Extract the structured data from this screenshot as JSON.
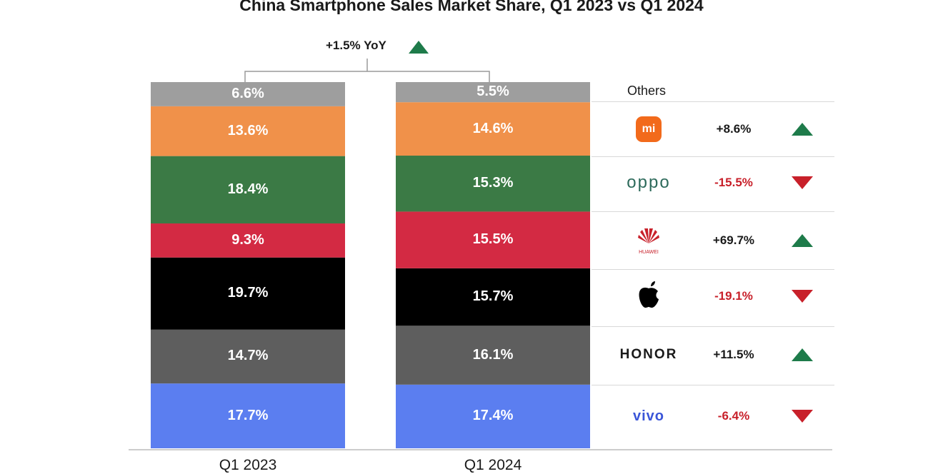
{
  "title": "China Smartphone Sales Market Share, Q1 2023 vs Q1 2024",
  "annotation": {
    "yoy_text": "+1.5% YoY",
    "direction": "up"
  },
  "colors": {
    "up": "#1e7b4a",
    "down": "#c8202a"
  },
  "chart_data": {
    "type": "bar",
    "stacked": true,
    "categories": [
      "Q1 2023",
      "Q1 2024"
    ],
    "series": [
      {
        "name": "",
        "color": "#5b7ef0",
        "values": [
          17.7,
          17.4
        ],
        "labels": [
          "17.7%",
          "17.4%"
        ]
      },
      {
        "name": "",
        "color": "#5e5e5e",
        "values": [
          14.7,
          16.1
        ],
        "labels": [
          "14.7%",
          "16.1%"
        ]
      },
      {
        "name": "",
        "color": "#000000",
        "values": [
          19.7,
          15.7
        ],
        "labels": [
          "19.7%",
          "15.7%"
        ]
      },
      {
        "name": "",
        "color": "#d32a43",
        "values": [
          9.3,
          15.5
        ],
        "labels": [
          "9.3%",
          "15.5%"
        ]
      },
      {
        "name": "",
        "color": "#3b7a45",
        "values": [
          18.4,
          15.3
        ],
        "labels": [
          "18.4%",
          "15.3%"
        ]
      },
      {
        "name": "",
        "color": "#f0914a",
        "values": [
          13.6,
          14.6
        ],
        "labels": [
          "13.6%",
          "14.6%"
        ]
      },
      {
        "name": "Others",
        "color": "#9e9e9e",
        "values": [
          6.6,
          5.5
        ],
        "labels": [
          "6.6%",
          "5.5%"
        ]
      }
    ],
    "legend": {
      "others_label": "Others",
      "brands": [
        {
          "brand": "mi",
          "icon": "xiaomi-logo",
          "change": "+8.6%",
          "direction": "up"
        },
        {
          "brand": "oppo",
          "icon": "oppo-logo",
          "change": "-15.5%",
          "direction": "down"
        },
        {
          "brand": "HUAWEI",
          "icon": "huawei-logo",
          "change": "+69.7%",
          "direction": "up"
        },
        {
          "brand": "",
          "icon": "apple-logo",
          "change": "-19.1%",
          "direction": "down"
        },
        {
          "brand": "HONOR",
          "icon": "honor-logo",
          "change": "+11.5%",
          "direction": "up"
        },
        {
          "brand": "vivo",
          "icon": "vivo-logo",
          "change": "-6.4%",
          "direction": "down"
        }
      ]
    }
  }
}
